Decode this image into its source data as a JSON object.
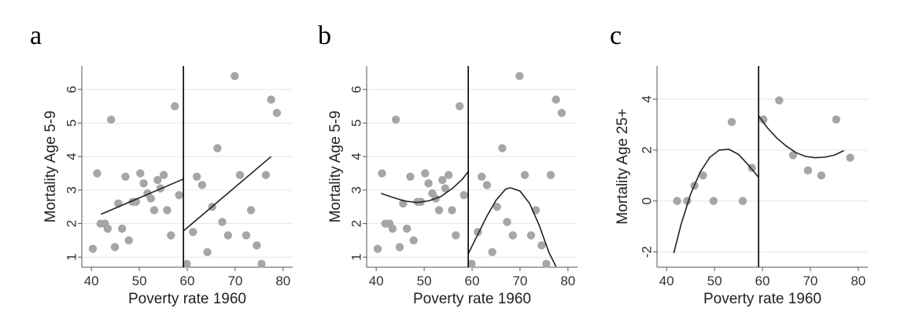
{
  "chart_data": [
    {
      "panel_letter": "a",
      "type": "scatter",
      "xlabel": "Poverty rate 1960",
      "ylabel": "Mortality Age 5-9",
      "xlim": [
        38,
        82
      ],
      "ylim": [
        0.7,
        6.7
      ],
      "xticks": [
        40,
        50,
        60,
        70,
        80
      ],
      "yticks": [
        1,
        2,
        3,
        4,
        5,
        6
      ],
      "cutoff": 59.2,
      "grid": true,
      "points": [
        [
          40.3,
          1.25
        ],
        [
          41.2,
          3.5
        ],
        [
          41.9,
          2.0
        ],
        [
          42.8,
          2.0
        ],
        [
          43.4,
          1.85
        ],
        [
          44.1,
          5.1
        ],
        [
          44.9,
          1.3
        ],
        [
          45.6,
          2.6
        ],
        [
          46.4,
          1.85
        ],
        [
          47.1,
          3.4
        ],
        [
          47.8,
          1.5
        ],
        [
          48.6,
          2.65
        ],
        [
          49.3,
          2.65
        ],
        [
          50.2,
          3.5
        ],
        [
          50.9,
          3.2
        ],
        [
          51.7,
          2.9
        ],
        [
          52.4,
          2.75
        ],
        [
          53.1,
          2.4
        ],
        [
          53.8,
          3.3
        ],
        [
          54.4,
          3.05
        ],
        [
          55.1,
          3.45
        ],
        [
          55.8,
          2.4
        ],
        [
          56.6,
          1.65
        ],
        [
          57.4,
          5.5
        ],
        [
          58.3,
          2.85
        ],
        [
          59.9,
          0.8
        ],
        [
          61.2,
          1.75
        ],
        [
          62.0,
          3.4
        ],
        [
          63.1,
          3.15
        ],
        [
          64.2,
          1.15
        ],
        [
          65.2,
          2.5
        ],
        [
          66.3,
          4.25
        ],
        [
          67.3,
          2.05
        ],
        [
          68.5,
          1.65
        ],
        [
          69.9,
          6.4
        ],
        [
          71.0,
          3.45
        ],
        [
          72.3,
          1.65
        ],
        [
          73.3,
          2.4
        ],
        [
          74.5,
          1.35
        ],
        [
          75.5,
          0.8
        ],
        [
          76.4,
          3.45
        ],
        [
          77.5,
          5.7
        ],
        [
          78.7,
          5.3
        ]
      ],
      "fit_left": {
        "x": [
          42,
          59.2
        ],
        "y": [
          2.28,
          3.33
        ]
      },
      "fit_right": {
        "x": [
          59.2,
          77.5
        ],
        "y": [
          1.78,
          4.0
        ]
      }
    },
    {
      "panel_letter": "b",
      "type": "scatter",
      "xlabel": "Poverty rate 1960",
      "ylabel": "Mortality Age 5-9",
      "xlim": [
        38,
        82
      ],
      "ylim": [
        0.7,
        6.7
      ],
      "xticks": [
        40,
        50,
        60,
        70,
        80
      ],
      "yticks": [
        1,
        2,
        3,
        4,
        5,
        6
      ],
      "cutoff": 59.2,
      "grid": true,
      "points": [
        [
          40.3,
          1.25
        ],
        [
          41.2,
          3.5
        ],
        [
          41.9,
          2.0
        ],
        [
          42.8,
          2.0
        ],
        [
          43.4,
          1.85
        ],
        [
          44.1,
          5.1
        ],
        [
          44.9,
          1.3
        ],
        [
          45.6,
          2.6
        ],
        [
          46.4,
          1.85
        ],
        [
          47.1,
          3.4
        ],
        [
          47.8,
          1.5
        ],
        [
          48.6,
          2.65
        ],
        [
          49.3,
          2.65
        ],
        [
          50.2,
          3.5
        ],
        [
          50.9,
          3.2
        ],
        [
          51.7,
          2.9
        ],
        [
          52.4,
          2.75
        ],
        [
          53.1,
          2.4
        ],
        [
          53.8,
          3.3
        ],
        [
          54.4,
          3.05
        ],
        [
          55.1,
          3.45
        ],
        [
          55.8,
          2.4
        ],
        [
          56.6,
          1.65
        ],
        [
          57.4,
          5.5
        ],
        [
          58.3,
          2.85
        ],
        [
          59.9,
          0.8
        ],
        [
          61.2,
          1.75
        ],
        [
          62.0,
          3.4
        ],
        [
          63.1,
          3.15
        ],
        [
          64.2,
          1.15
        ],
        [
          65.2,
          2.5
        ],
        [
          66.3,
          4.25
        ],
        [
          67.3,
          2.05
        ],
        [
          68.5,
          1.65
        ],
        [
          69.9,
          6.4
        ],
        [
          71.0,
          3.45
        ],
        [
          72.3,
          1.65
        ],
        [
          73.3,
          2.4
        ],
        [
          74.5,
          1.35
        ],
        [
          75.5,
          0.8
        ],
        [
          76.4,
          3.45
        ],
        [
          77.5,
          5.7
        ],
        [
          78.7,
          5.3
        ]
      ],
      "fit_left": {
        "x": [
          41,
          43.5,
          46,
          48.5,
          51,
          53.5,
          56,
          58,
          59.2
        ],
        "y": [
          2.9,
          2.78,
          2.67,
          2.63,
          2.68,
          2.81,
          3.06,
          3.33,
          3.55
        ]
      },
      "fit_right": {
        "x": [
          59.2,
          61,
          63,
          65,
          67,
          68,
          70,
          72,
          74,
          76,
          77.5
        ],
        "y": [
          1.1,
          1.62,
          2.2,
          2.7,
          3.03,
          3.07,
          2.97,
          2.6,
          1.95,
          1.15,
          0.72
        ]
      }
    },
    {
      "panel_letter": "c",
      "type": "scatter",
      "xlabel": "Poverty rate 1960",
      "ylabel": "Mortality Age 25+",
      "xlim": [
        38,
        82
      ],
      "ylim": [
        -2.6,
        5.3
      ],
      "xticks": [
        40,
        50,
        60,
        70,
        80
      ],
      "yticks": [
        -2,
        0,
        2,
        4
      ],
      "cutoff": 59.2,
      "grid": true,
      "points": [
        [
          42.2,
          0.0
        ],
        [
          44.3,
          0.0
        ],
        [
          45.8,
          0.6
        ],
        [
          47.6,
          1.0
        ],
        [
          49.8,
          0.0
        ],
        [
          53.6,
          3.1
        ],
        [
          55.9,
          0.0
        ],
        [
          57.8,
          1.3
        ],
        [
          60.2,
          3.2
        ],
        [
          63.5,
          3.95
        ],
        [
          66.4,
          1.8
        ],
        [
          69.5,
          1.2
        ],
        [
          72.3,
          1.0
        ],
        [
          75.4,
          3.2
        ],
        [
          78.3,
          1.7
        ]
      ],
      "fit_left": {
        "x": [
          41.5,
          43,
          45,
          47,
          49,
          51,
          53,
          55,
          57,
          59.2
        ],
        "y": [
          -2.05,
          -0.93,
          0.26,
          1.13,
          1.71,
          2.0,
          2.03,
          1.83,
          1.43,
          0.93
        ]
      },
      "fit_right": {
        "x": [
          59.2,
          61,
          63,
          65,
          67,
          69,
          71,
          73,
          75,
          77
        ],
        "y": [
          3.35,
          2.88,
          2.47,
          2.15,
          1.9,
          1.75,
          1.7,
          1.72,
          1.8,
          1.98
        ]
      }
    }
  ],
  "colors": {
    "points": "#a6a6a6",
    "lines": "#222222",
    "grid": "#e6e6e6"
  }
}
